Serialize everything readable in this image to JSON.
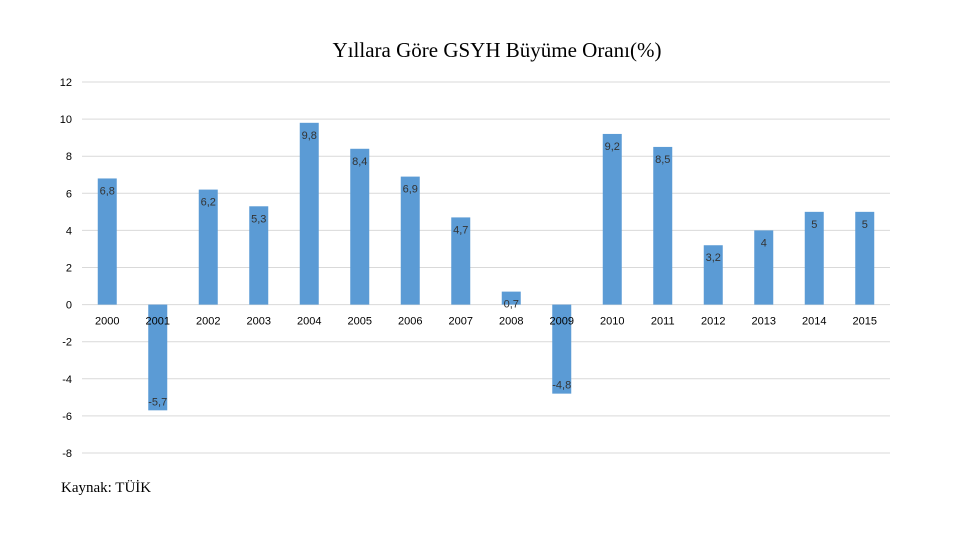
{
  "chart_data": {
    "type": "bar",
    "title": "Yıllara Göre GSYH Büyüme Oranı(%)",
    "xlabel": "",
    "ylabel": "",
    "ylim": [
      -8,
      12
    ],
    "yticks": [
      -8,
      -6,
      -4,
      -2,
      0,
      2,
      4,
      6,
      8,
      10,
      12
    ],
    "grid": true,
    "categories": [
      "2000",
      "2001",
      "2002",
      "2003",
      "2004",
      "2005",
      "2006",
      "2007",
      "2008",
      "2009",
      "2010",
      "2011",
      "2012",
      "2013",
      "2014",
      "2015"
    ],
    "values": [
      6.8,
      -5.7,
      6.2,
      5.3,
      9.8,
      8.4,
      6.9,
      4.7,
      0.7,
      -4.8,
      9.2,
      8.5,
      3.2,
      4,
      5,
      5
    ],
    "data_labels": [
      "6,8",
      "-5,7",
      "6,2",
      "5,3",
      "9,8",
      "8,4",
      "6,9",
      "4,7",
      "0,7",
      "-4,8",
      "9,2",
      "8,5",
      "3,2",
      "4",
      "5",
      "5"
    ],
    "bar_color": "#5b9bd5"
  },
  "source": "Kaynak: TÜİK"
}
